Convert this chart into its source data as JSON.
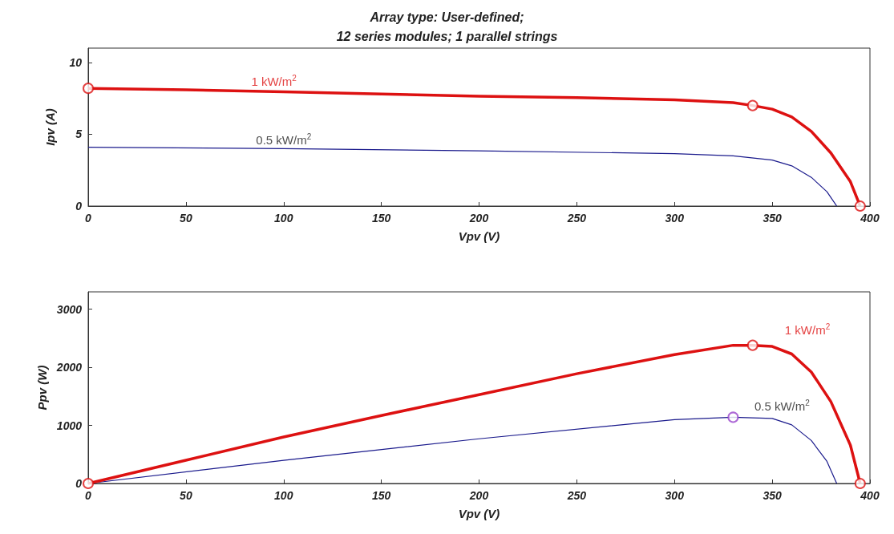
{
  "chart_data": [
    {
      "type": "line",
      "title": "Array type: User-defined;\n12 series modules; 1 parallel strings",
      "xlabel": "Vpv (V)",
      "ylabel": "Ipv (A)",
      "xlim": [
        0,
        400
      ],
      "xticks": [
        0,
        50,
        100,
        150,
        200,
        250,
        300,
        350,
        400
      ],
      "ylim": [
        0,
        11
      ],
      "yticks": [
        0,
        5,
        10
      ],
      "grid": false,
      "series": [
        {
          "name": "1 kW/m$^{2}$",
          "color": "#dd1111",
          "x": [
            0,
            50,
            100,
            150,
            200,
            250,
            300,
            330,
            340,
            350,
            360,
            370,
            380,
            390,
            395
          ],
          "values": [
            8.2,
            8.1,
            7.95,
            7.8,
            7.65,
            7.55,
            7.4,
            7.2,
            7.0,
            6.75,
            6.2,
            5.2,
            3.7,
            1.7,
            0
          ]
        },
        {
          "name": "0.5 kW/m$^{2}$",
          "color": "#1a1a8c",
          "x": [
            0,
            100,
            200,
            300,
            330,
            350,
            360,
            370,
            378,
            383
          ],
          "values": [
            4.1,
            4.0,
            3.85,
            3.65,
            3.5,
            3.2,
            2.8,
            2.0,
            1.0,
            0
          ]
        },
        {
          "type": "scatter",
          "marker": "circle",
          "color": "#dd1111",
          "x": [
            0,
            340,
            395
          ],
          "values": [
            8.2,
            7.0,
            0
          ]
        }
      ]
    },
    {
      "type": "line",
      "xlabel": "Vpv (V)",
      "ylabel": "Ppv (W)",
      "xlim": [
        0,
        400
      ],
      "xticks": [
        0,
        50,
        100,
        150,
        200,
        250,
        300,
        350,
        400
      ],
      "ylim": [
        0,
        3300
      ],
      "yticks": [
        0,
        1000,
        2000,
        3000
      ],
      "grid": false,
      "series": [
        {
          "name": "1 kW/m$^{2}$",
          "color": "#dd1111",
          "x": [
            0,
            50,
            100,
            150,
            200,
            250,
            300,
            330,
            340,
            350,
            360,
            370,
            380,
            390,
            395
          ],
          "values": [
            0,
            400,
            800,
            1170,
            1530,
            1890,
            2220,
            2380,
            2380,
            2360,
            2230,
            1920,
            1410,
            660,
            0
          ]
        },
        {
          "name": "0.5 kW/m$^{2}$",
          "color": "#1a1a8c",
          "x": [
            0,
            100,
            200,
            300,
            330,
            350,
            360,
            370,
            378,
            383
          ],
          "values": [
            0,
            400,
            770,
            1100,
            1140,
            1120,
            1010,
            740,
            380,
            0
          ]
        },
        {
          "type": "scatter",
          "marker": "circle",
          "color": "#dd1111",
          "x": [
            0,
            340,
            395
          ],
          "values": [
            0,
            2380,
            0
          ]
        },
        {
          "type": "scatter",
          "marker": "circle",
          "color": "#9944cc",
          "x": [
            330
          ],
          "values": [
            1140
          ]
        }
      ]
    }
  ]
}
